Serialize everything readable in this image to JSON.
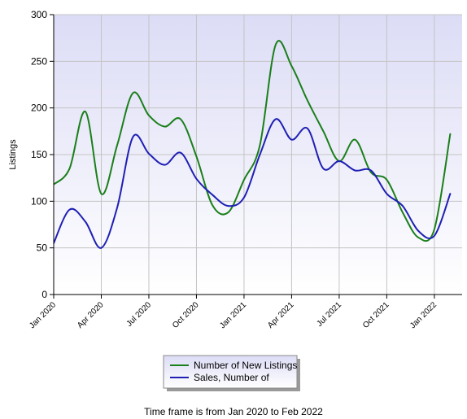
{
  "chart_data": {
    "type": "line",
    "ylabel": "Listings",
    "ylim": [
      0,
      300
    ],
    "yticks": [
      0,
      50,
      100,
      150,
      200,
      250,
      300
    ],
    "xlim": [
      0,
      25.75
    ],
    "xtick_labels": [
      "Jan 2020",
      "Apr 2020",
      "Jul 2020",
      "Oct 2020",
      "Jan 2021",
      "Apr 2021",
      "Jul 2021",
      "Oct 2021",
      "Jan 2022"
    ],
    "xtick_positions": [
      0,
      3,
      6,
      9,
      12,
      15,
      18,
      21,
      24
    ],
    "x": [
      "Jan 2020",
      "Feb 2020",
      "Mar 2020",
      "Apr 2020",
      "May 2020",
      "Jun 2020",
      "Jul 2020",
      "Aug 2020",
      "Sep 2020",
      "Oct 2020",
      "Nov 2020",
      "Dec 2020",
      "Jan 2021",
      "Feb 2021",
      "Mar 2021",
      "Apr 2021",
      "May 2021",
      "Jun 2021",
      "Jul 2021",
      "Aug 2021",
      "Sep 2021",
      "Oct 2021",
      "Nov 2021",
      "Dec 2021",
      "Jan 2022",
      "Feb 2022"
    ],
    "grid": true,
    "legend_position": "bottom-center",
    "series": [
      {
        "name": "Number of New Listings",
        "color": "#1a7f1a",
        "values": [
          118,
          135,
          196,
          108,
          160,
          216,
          192,
          180,
          188,
          148,
          96,
          88,
          123,
          160,
          268,
          245,
          208,
          175,
          143,
          166,
          131,
          123,
          88,
          61,
          70,
          172
        ]
      },
      {
        "name": "Sales, Number of",
        "color": "#1f1fb4",
        "values": [
          55,
          91,
          78,
          50,
          93,
          169,
          151,
          139,
          152,
          124,
          107,
          95,
          104,
          150,
          188,
          166,
          178,
          135,
          143,
          133,
          133,
          108,
          95,
          68,
          63,
          108
        ]
      }
    ]
  },
  "footer": {
    "caption": "Time frame is from Jan 2020 to Feb 2022"
  }
}
